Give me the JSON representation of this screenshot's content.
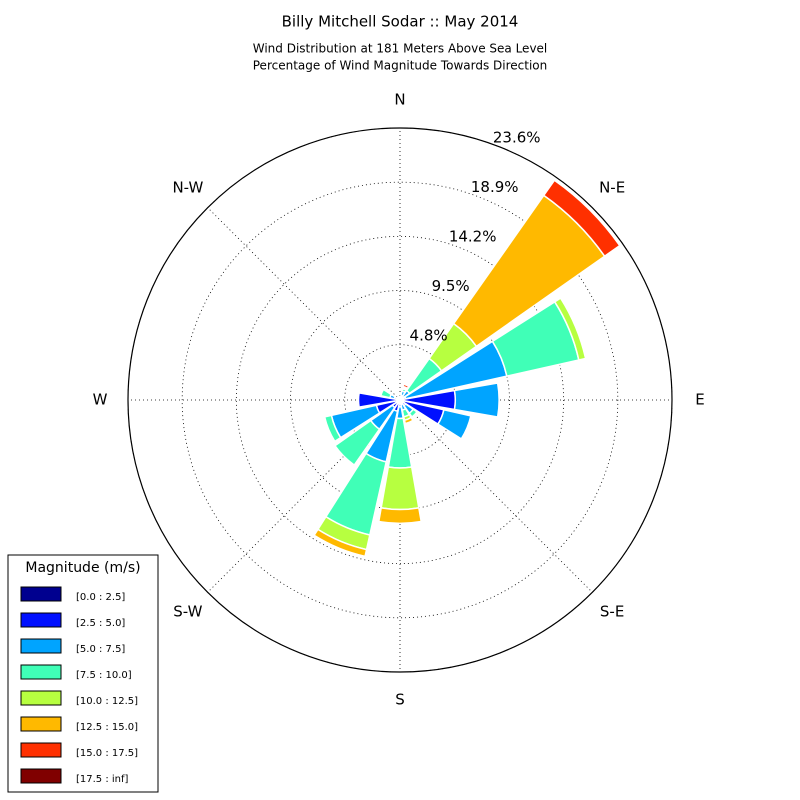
{
  "chart_data": {
    "type": "windrose",
    "title": "Billy Mitchell Sodar :: May 2014",
    "subtitle": [
      "Wind Distribution at 181 Meters Above Sea Level",
      "Percentage of Wind Magnitude Towards Direction"
    ],
    "categories": [
      "N",
      null,
      "N-E",
      null,
      "E",
      null,
      "S-E",
      null,
      "S",
      null,
      "S-W",
      null,
      "W",
      null,
      "N-W",
      null
    ],
    "rlim": [
      0,
      23.6
    ],
    "rticks": [
      {
        "value": 4.8,
        "label": "4.8%"
      },
      {
        "value": 9.5,
        "label": "9.5%"
      },
      {
        "value": 14.2,
        "label": "14.2%"
      },
      {
        "value": 18.9,
        "label": "18.9%"
      },
      {
        "value": 23.6,
        "label": "23.6%"
      }
    ],
    "grid": true,
    "legend_title": "Magnitude (m/s)",
    "legend_position": "lower left",
    "series": [
      {
        "name": "[0.0 : 2.5]",
        "color": "#00008f",
        "values": [
          0.1,
          0.1,
          0.1,
          0.1,
          0.1,
          0.1,
          0.1,
          0.1,
          0.1,
          0.1,
          0.1,
          0.1,
          0.1,
          0.1,
          0.1,
          0.1
        ]
      },
      {
        "name": "[2.5 : 5.0]",
        "color": "#0010ff",
        "values": [
          0.1,
          0.3,
          0.3,
          0.4,
          4.7,
          3.8,
          0.5,
          0.3,
          0.5,
          0.9,
          0.7,
          2.0,
          3.5,
          0.4,
          0.1,
          0.1
        ]
      },
      {
        "name": "[5.0 : 7.5]",
        "color": "#00a4ff",
        "values": [
          0.1,
          0.4,
          0.6,
          9.0,
          3.8,
          2.4,
          0.8,
          0.5,
          1.0,
          4.5,
          2.3,
          4.0,
          0,
          0.4,
          0.1,
          0.1
        ]
      },
      {
        "name": "[7.5 : 10.0]",
        "color": "#40ffb7",
        "values": [
          0,
          0.2,
          3.4,
          6.4,
          0,
          0,
          0.4,
          0.6,
          4.3,
          6.5,
          3.8,
          0.6,
          0,
          0.8,
          0,
          0
        ]
      },
      {
        "name": "[10.0 : 12.5]",
        "color": "#b7ff40",
        "values": [
          0,
          0.1,
          3.7,
          0.6,
          0,
          0,
          0,
          0.3,
          3.6,
          1.3,
          0,
          0,
          0,
          0,
          0,
          0
        ]
      },
      {
        "name": "[12.5 : 15.0]",
        "color": "#ffb900",
        "values": [
          0,
          0.1,
          13.6,
          0,
          0,
          0,
          0,
          0.3,
          1.2,
          0.6,
          0,
          0,
          0,
          0,
          0,
          0
        ]
      },
      {
        "name": "[15.0 : 17.5]",
        "color": "#ff3000",
        "values": [
          0,
          0.2,
          1.6,
          0,
          0,
          0,
          0,
          0,
          0,
          0,
          0,
          0,
          0,
          0,
          0,
          0
        ]
      },
      {
        "name": "[17.5 : inf]",
        "color": "#800000",
        "values": [
          0,
          0,
          0,
          0,
          0,
          0,
          0,
          0,
          0,
          0,
          0,
          0,
          0,
          0,
          0,
          0
        ]
      }
    ]
  }
}
